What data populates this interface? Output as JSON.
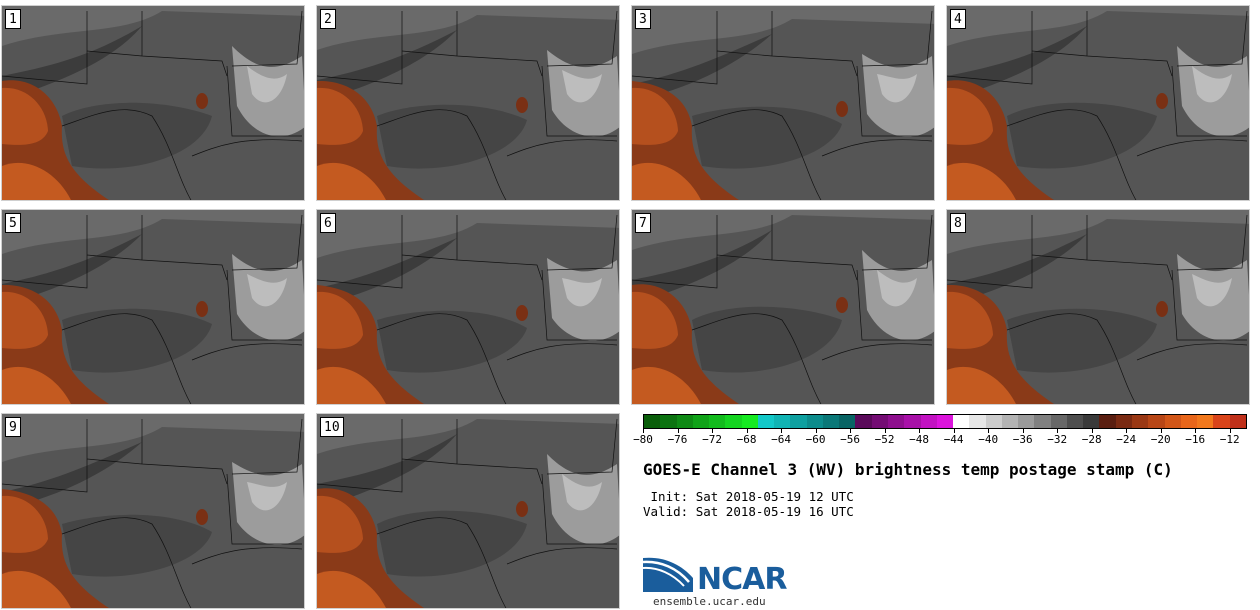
{
  "chart_data": {
    "type": "heatmap",
    "title": "GOES-E Channel 3 (WV) brightness temp postage stamp (C)",
    "init": "Sat 2018-05-19 12 UTC",
    "valid": "Sat 2018-05-19 16 UTC",
    "units": "C",
    "members": [
      "1",
      "2",
      "3",
      "4",
      "5",
      "6",
      "7",
      "8",
      "9",
      "10"
    ],
    "colorbar": {
      "min": -80,
      "max": -10,
      "ticks": [
        -80,
        -76,
        -72,
        -68,
        -64,
        -60,
        -56,
        -52,
        -48,
        -44,
        -40,
        -36,
        -32,
        -28,
        -24,
        -20,
        -16,
        -12
      ],
      "colors": [
        "#0a5e0a",
        "#0c7310",
        "#0e8a14",
        "#10a318",
        "#12bb1c",
        "#14d420",
        "#16ea22",
        "#12c8c8",
        "#10b4b4",
        "#0ea0a0",
        "#0c8c8c",
        "#0a7878",
        "#086464",
        "#5a0a5a",
        "#740c74",
        "#8e0e8e",
        "#a810a8",
        "#c212c2",
        "#dc14dc",
        "#ffffff",
        "#e6e6e6",
        "#cccccc",
        "#b3b3b3",
        "#9a9a9a",
        "#808080",
        "#676767",
        "#4e4e4e",
        "#3a3a3a",
        "#5a1e10",
        "#7a2a12",
        "#9a3814",
        "#b84616",
        "#d25618",
        "#e8661a",
        "#f2781c",
        "#d9441a",
        "#c0301a"
      ]
    }
  },
  "logo": {
    "name": "NCAR",
    "url": "ensemble.ucar.edu"
  },
  "colors": {
    "warm": "#b5501e",
    "mid": "#555555",
    "dark": "#3c3c3c",
    "light": "#bdbdbd"
  }
}
